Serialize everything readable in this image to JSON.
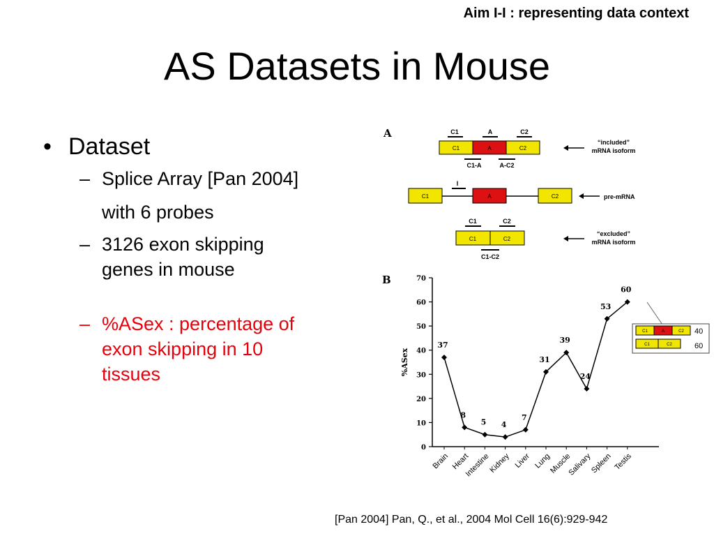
{
  "slide": {
    "aim": "Aim I-I : representing data context",
    "title": "AS Datasets in Mouse",
    "bullet_main": "Dataset",
    "sub1_line1": "Splice Array [Pan 2004]",
    "sub1_line2": "with 6 probes",
    "sub2_line1": "3126 exon skipping",
    "sub2_line2": "genes in mouse",
    "sub3_line1": "%ASex : percentage of",
    "sub3_line2": "exon skipping in 10",
    "sub3_line3": "tissues",
    "citation": "[Pan 2004] Pan, Q., et al., 2004 Mol Cell 16(6):929-942",
    "colors": {
      "accent_red": "#e8000b",
      "exon_yellow": "#f2e600",
      "exon_red": "#dd1111"
    }
  },
  "diagram": {
    "panel_a": "A",
    "panel_b": "B",
    "probe_c1": "C1",
    "probe_a": "A",
    "probe_c2": "C2",
    "probe_c1a": "C1-A",
    "probe_ac2": "A-C2",
    "probe_i": "I",
    "probe_c1c2": "C1-C2",
    "included_line1": "“included”",
    "included_line2": "mRNA isoform",
    "pre_mrna": "pre-mRNA",
    "excluded_line1": "“excluded”",
    "excluded_line2": "mRNA isoform",
    "exon_c1": "C1",
    "exon_a": "A",
    "exon_c2": "C2"
  },
  "chart_data": {
    "type": "line",
    "categories": [
      "Brain",
      "Heart",
      "Intestine",
      "Kidney",
      "Liver",
      "Lung",
      "Muscle",
      "Salivary",
      "Spleen",
      "Testis"
    ],
    "values": [
      37,
      8,
      5,
      4,
      7,
      31,
      39,
      24,
      53,
      60
    ],
    "ylabel": "%ASex",
    "ylim": [
      0,
      70
    ],
    "yticks": [
      "0",
      "10",
      "20",
      "30",
      "40",
      "50",
      "60",
      "70"
    ],
    "inset": {
      "included_value": "40",
      "excluded_value": "60",
      "c1": "C1",
      "a": "A",
      "c2": "C2"
    }
  }
}
